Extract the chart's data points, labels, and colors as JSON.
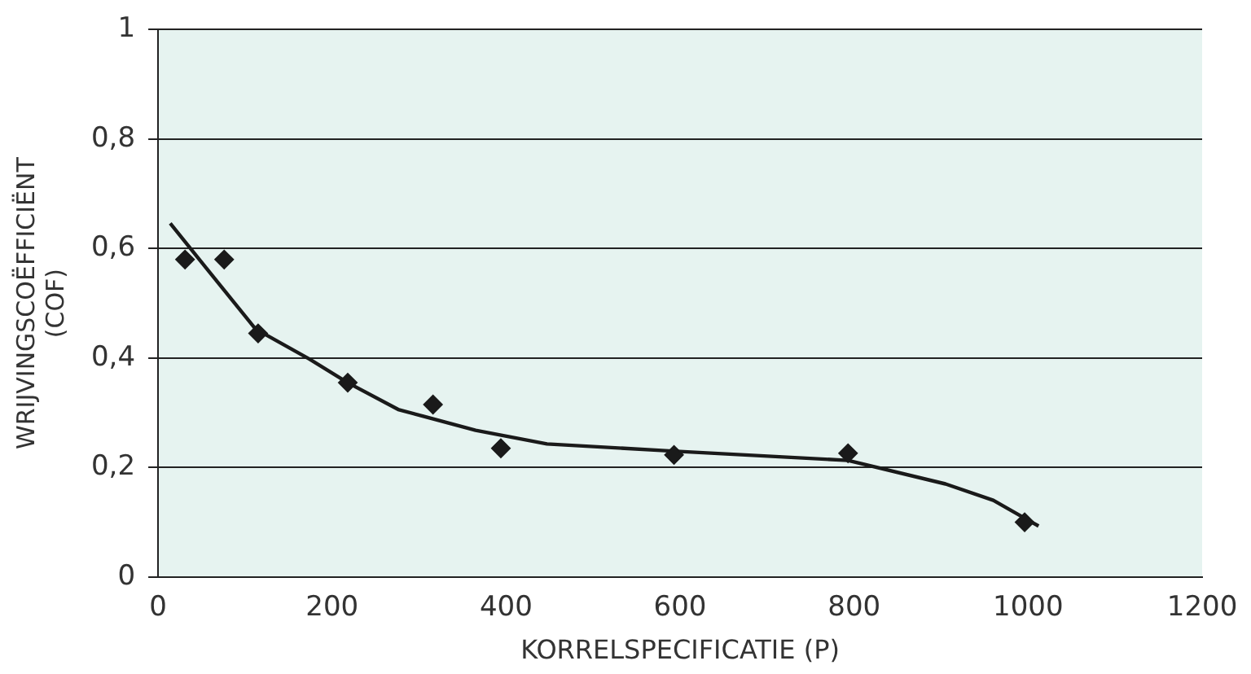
{
  "chart_data": {
    "type": "scatter",
    "xlabel": "KORRELSPECIFICATIE (P)",
    "ylabel": "WRIJVINGSCOËFFICIËNT\n(COF)",
    "xlim": [
      0,
      1200
    ],
    "xticks": [
      0,
      200,
      400,
      600,
      800,
      1000,
      1200
    ],
    "ylim": [
      0,
      1
    ],
    "yticks": [
      {
        "value": 0,
        "label": "0"
      },
      {
        "value": 0.2,
        "label": "0,2"
      },
      {
        "value": 0.4,
        "label": "0,4"
      },
      {
        "value": 0.6,
        "label": "0,6"
      },
      {
        "value": 0.8,
        "label": "0,8"
      },
      {
        "value": 1,
        "label": "1"
      }
    ],
    "grid": "y",
    "legend": false,
    "marker": "diamond",
    "series": [
      {
        "color": "#1a1a1a",
        "x": [
          31,
          76,
          115,
          218,
          316,
          394,
          593,
          793,
          996
        ],
        "values": [
          0.58,
          0.58,
          0.445,
          0.355,
          0.315,
          0.235,
          0.223,
          0.226,
          0.1
        ]
      },
      {
        "type": "line",
        "color": "#1a1a1a",
        "marker": "none",
        "x": [
          14,
          112,
          174,
          218,
          276,
          365,
          447,
          591,
          793,
          905,
          960,
          1012
        ],
        "values": [
          0.646,
          0.453,
          0.398,
          0.355,
          0.306,
          0.268,
          0.243,
          0.23,
          0.213,
          0.17,
          0.14,
          0.093
        ]
      }
    ]
  }
}
